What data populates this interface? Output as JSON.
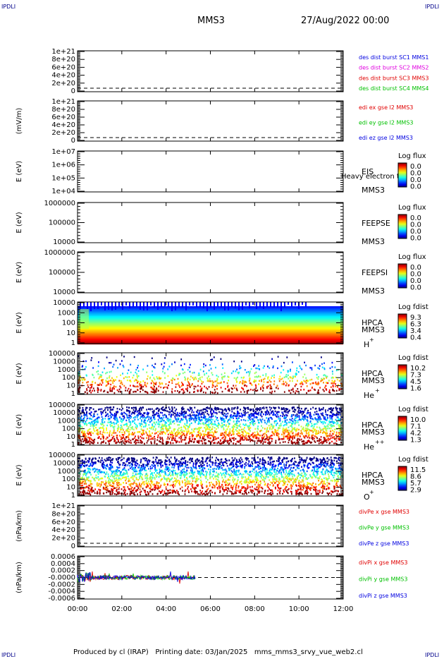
{
  "corner": {
    "tl": "IPDLI",
    "tr": "IPDLI",
    "bl": "IPDLI",
    "br": "IPDLI"
  },
  "header": {
    "spacecraft": "MMS3",
    "datetime": "27/Aug/2022 00:00"
  },
  "footer": "Produced by cl (IRAP)   Printing date: 03/Jan/2025   mms_mms3_srvy_vue_web2.cl",
  "colors": {
    "red": "#e00000",
    "green": "#00c000",
    "blue": "#0000e0",
    "magenta": "#e000e0"
  },
  "chart_data": {
    "type": "multi-panel",
    "xlim": [
      "00:00",
      "12:00"
    ],
    "xticks": [
      "00:00",
      "02:00",
      "04:00",
      "06:00",
      "08:00",
      "10:00",
      "12:00"
    ],
    "panels": [
      {
        "id": "p1",
        "kind": "line",
        "ylabel": "",
        "yticks": [
          "1e+21",
          "8e+20",
          "6e+20",
          "4e+20",
          "2e+20",
          "0"
        ],
        "legend": [
          {
            "text": "des dist burst SC1 MMS1",
            "color": "#0000e0"
          },
          {
            "text": "des dist burst SC2 MMS2",
            "color": "#e000e0"
          },
          {
            "text": "des dist burst SC3 MMS3",
            "color": "#e00000"
          },
          {
            "text": "des dist burst SC4 MMS4",
            "color": "#00c000"
          }
        ]
      },
      {
        "id": "p2",
        "kind": "line",
        "ylabel": "(mV/m)",
        "yticks": [
          "1e+21",
          "8e+20",
          "6e+20",
          "4e+20",
          "2e+20",
          "0"
        ],
        "legend": [
          {
            "text": "edi ex gse l2 MMS3",
            "color": "#e00000"
          },
          {
            "text": "edi ey gse l2 MMS3",
            "color": "#00c000"
          },
          {
            "text": "edi ez gse l2 MMS3",
            "color": "#0000e0"
          }
        ]
      },
      {
        "id": "p3",
        "kind": "spectrogram",
        "ylabel": "E (eV)",
        "yticks": [
          "1e+07",
          "1e+06",
          "1e+05",
          "1e+04"
        ],
        "label": [
          "EIS",
          "MMS3"
        ],
        "overlay": "Heavy electron to",
        "cbar_title": "Log flux",
        "cbar_ticks": [
          "0.0",
          "0.0",
          "0.0",
          "0.0"
        ]
      },
      {
        "id": "p4",
        "kind": "spectrogram",
        "ylabel": "E (eV)",
        "yticks": [
          "1000000",
          "100000",
          "10000"
        ],
        "label": [
          "FEEPSE",
          "MMS3"
        ],
        "cbar_title": "Log flux",
        "cbar_ticks": [
          "0.0",
          "0.0",
          "0.0",
          "0.0"
        ]
      },
      {
        "id": "p5",
        "kind": "spectrogram",
        "ylabel": "E (eV)",
        "yticks": [
          "1000000",
          "100000",
          "10000"
        ],
        "label": [
          "FEEPSI",
          "MMS3"
        ],
        "cbar_title": "Log flux",
        "cbar_ticks": [
          "0.0",
          "0.0",
          "0.0",
          "0.0"
        ]
      },
      {
        "id": "p6",
        "kind": "spectrogram",
        "ylabel": "E (eV)",
        "yticks": [
          "10000",
          "1000",
          "100",
          "10",
          "1"
        ],
        "label": [
          "HPCA",
          "MMS3"
        ],
        "species": "H",
        "charge": "+",
        "cbar_title": "Log fdist",
        "cbar_ticks": [
          "9.3",
          "6.3",
          "3.4",
          "0.4"
        ]
      },
      {
        "id": "p7",
        "kind": "spectrogram",
        "ylabel": "E (eV)",
        "yticks": [
          "100000",
          "10000",
          "1000",
          "100",
          "10",
          "1"
        ],
        "label": [
          "HPCA",
          "MMS3"
        ],
        "species": "He",
        "charge": "+",
        "cbar_title": "Log fdist",
        "cbar_ticks": [
          "10.2",
          "7.3",
          "4.5",
          "1.6"
        ]
      },
      {
        "id": "p8",
        "kind": "spectrogram",
        "ylabel": "E (eV)",
        "yticks": [
          "100000",
          "10000",
          "1000",
          "100",
          "10",
          "1"
        ],
        "label": [
          "HPCA",
          "MMS3"
        ],
        "species": "He",
        "charge": "++",
        "cbar_title": "Log fdist",
        "cbar_ticks": [
          "10.0",
          "7.1",
          "4.2",
          "1.3"
        ]
      },
      {
        "id": "p9",
        "kind": "spectrogram",
        "ylabel": "E (eV)",
        "yticks": [
          "100000",
          "10000",
          "1000",
          "100",
          "10",
          "1"
        ],
        "label": [
          "HPCA",
          "MMS3"
        ],
        "species": "O",
        "charge": "+",
        "cbar_title": "Log fdist",
        "cbar_ticks": [
          "11.5",
          "8.6",
          "5.7",
          "2.9"
        ]
      },
      {
        "id": "p10",
        "kind": "line",
        "ylabel": "(nPa/km)",
        "yticks": [
          "1e+21",
          "8e+20",
          "6e+20",
          "4e+20",
          "2e+20",
          "0"
        ],
        "legend": [
          {
            "text": "divPe x gse MMS3",
            "color": "#e00000"
          },
          {
            "text": "divPe y gse MMS3",
            "color": "#00c000"
          },
          {
            "text": "divPe z gse MMS3",
            "color": "#0000e0"
          }
        ]
      },
      {
        "id": "p11",
        "kind": "line",
        "ylabel": "(nPa/km)",
        "yticks": [
          "0.0006",
          "0.0004",
          "0.0002",
          "-0.0000",
          "-0.0002",
          "-0.0004",
          "-0.0006"
        ],
        "legend": [
          {
            "text": "divPi x gse MMS3",
            "color": "#e00000"
          },
          {
            "text": "divPi y gse MMS3",
            "color": "#00c000"
          },
          {
            "text": "divPi z gse MMS3",
            "color": "#0000e0"
          }
        ],
        "data_until": "05:20"
      }
    ]
  }
}
